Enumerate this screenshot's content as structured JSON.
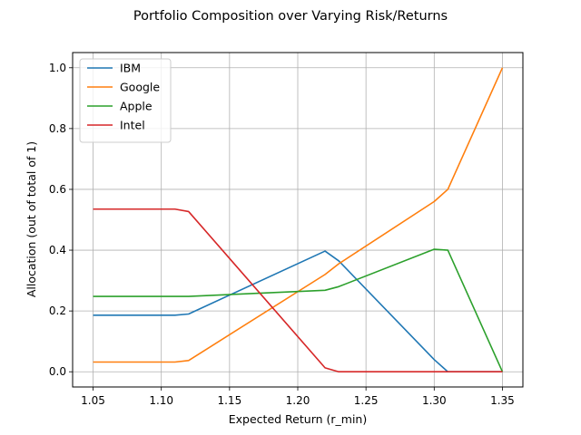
{
  "chart_data": {
    "type": "line",
    "title": "Portfolio Composition over Varying Risk/Returns",
    "xlabel": "Expected Return (r_min)",
    "ylabel": "Allocation (out of total of 1)",
    "xlim": [
      1.035,
      1.365
    ],
    "ylim": [
      -0.05,
      1.05
    ],
    "xticks": [
      1.05,
      1.1,
      1.15,
      1.2,
      1.25,
      1.3,
      1.35
    ],
    "xtick_labels": [
      "1.05",
      "1.10",
      "1.15",
      "1.20",
      "1.25",
      "1.30",
      "1.35"
    ],
    "yticks": [
      0.0,
      0.2,
      0.4,
      0.6,
      0.8,
      1.0
    ],
    "ytick_labels": [
      "0.0",
      "0.2",
      "0.4",
      "0.6",
      "0.8",
      "1.0"
    ],
    "grid": true,
    "legend_position": "top-left",
    "series": [
      {
        "name": "IBM",
        "color": "#1f77b4",
        "x": [
          1.05,
          1.11,
          1.12,
          1.22,
          1.23,
          1.3,
          1.31,
          1.35
        ],
        "y": [
          0.186,
          0.186,
          0.19,
          0.397,
          0.365,
          0.04,
          0.0,
          0.0
        ]
      },
      {
        "name": "Google",
        "color": "#ff7f0e",
        "x": [
          1.05,
          1.11,
          1.12,
          1.22,
          1.23,
          1.3,
          1.31,
          1.35
        ],
        "y": [
          0.032,
          0.032,
          0.037,
          0.32,
          0.355,
          0.56,
          0.6,
          1.0
        ]
      },
      {
        "name": "Apple",
        "color": "#2ca02c",
        "x": [
          1.05,
          1.11,
          1.12,
          1.22,
          1.23,
          1.3,
          1.31,
          1.35
        ],
        "y": [
          0.248,
          0.248,
          0.248,
          0.268,
          0.28,
          0.403,
          0.4,
          0.0
        ]
      },
      {
        "name": "Intel",
        "color": "#d62728",
        "x": [
          1.05,
          1.11,
          1.12,
          1.22,
          1.23,
          1.3,
          1.31,
          1.35
        ],
        "y": [
          0.535,
          0.535,
          0.527,
          0.013,
          0.0,
          0.0,
          0.0,
          0.0
        ]
      }
    ]
  }
}
